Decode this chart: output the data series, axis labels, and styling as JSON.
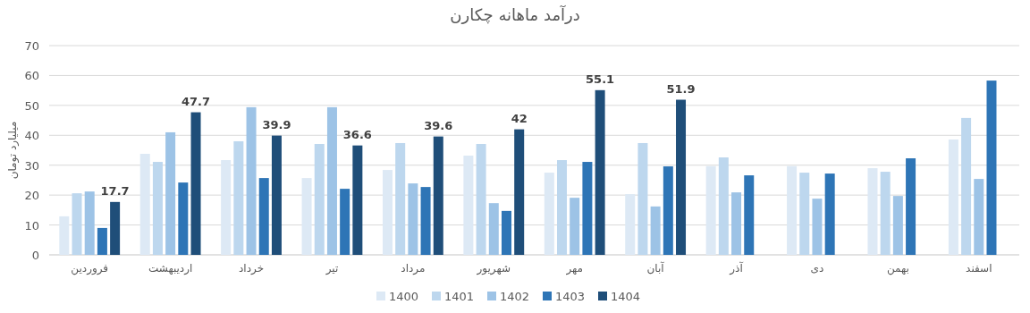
{
  "chart_data": {
    "type": "bar",
    "title": "درآمد ماهانه چکارن",
    "ylabel": "میلیارد تومان",
    "categories": [
      "فروردین",
      "اردیبهشت",
      "خرداد",
      "تیر",
      "مرداد",
      "شهریور",
      "مهر",
      "آبان",
      "آذر",
      "دی",
      "بهمن",
      "اسفند"
    ],
    "series": [
      {
        "name": "1400",
        "color": "#dde9f5",
        "values": [
          12.9,
          33.8,
          31.7,
          25.7,
          28.4,
          33.2,
          27.5,
          20.3,
          29.7,
          29.7,
          29.0,
          38.6
        ]
      },
      {
        "name": "1401",
        "color": "#bdd7ee",
        "values": [
          20.6,
          31.1,
          38.0,
          37.1,
          37.4,
          37.1,
          31.7,
          37.4,
          32.6,
          27.5,
          27.8,
          45.8
        ]
      },
      {
        "name": "1402",
        "color": "#9dc3e6",
        "values": [
          21.2,
          41.0,
          49.4,
          49.4,
          23.9,
          17.3,
          19.1,
          16.2,
          20.9,
          18.8,
          19.7,
          25.4
        ]
      },
      {
        "name": "1403",
        "color": "#2e75b6",
        "values": [
          9.0,
          24.2,
          25.7,
          22.1,
          22.7,
          14.7,
          31.1,
          29.6,
          26.6,
          27.2,
          32.3,
          58.3
        ]
      },
      {
        "name": "1404",
        "color": "#1f4e79",
        "values": [
          17.7,
          47.7,
          39.9,
          36.6,
          39.6,
          42,
          55.1,
          51.9,
          null,
          null,
          null,
          null
        ],
        "value_labels": [
          "17.7",
          "47.7",
          "39.9",
          "36.6",
          "39.6",
          "42",
          "55.1",
          "51.9",
          null,
          null,
          null,
          null
        ]
      }
    ],
    "ylim": [
      0,
      70
    ],
    "yticks": [
      0,
      10,
      20,
      30,
      40,
      50,
      60,
      70
    ],
    "grid": "y",
    "legend": "bottom"
  }
}
